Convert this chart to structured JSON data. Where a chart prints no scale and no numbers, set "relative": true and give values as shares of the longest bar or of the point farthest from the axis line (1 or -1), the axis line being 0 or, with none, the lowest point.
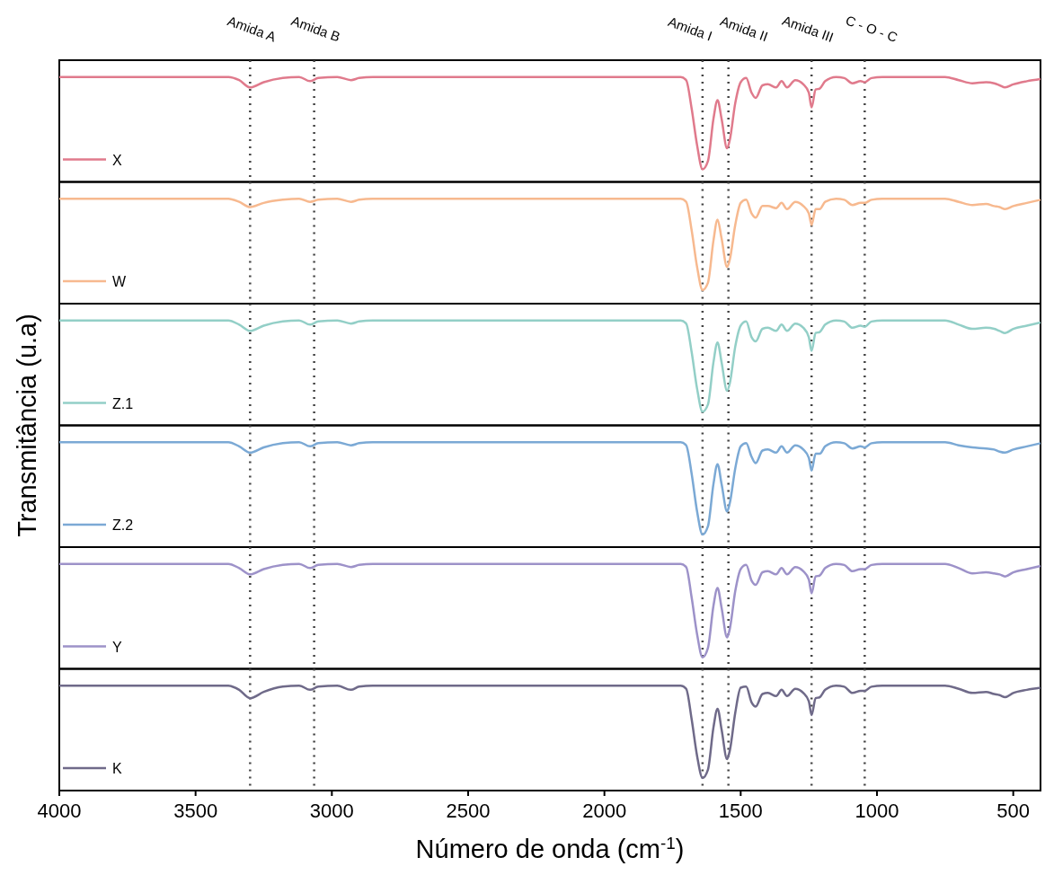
{
  "chart_data": [
    {
      "type": "line",
      "relative": true,
      "ylabel": "Transmitância (u.a)",
      "legend": "bottom left",
      "tick_labels": false,
      "xlim": [
        4000,
        400
      ],
      "xticks": [
        4000,
        3500,
        3000,
        2500,
        2000,
        1500,
        1000,
        500
      ],
      "x": [
        4000,
        3380,
        3340,
        3300,
        3250,
        3180,
        3120,
        3080,
        3050,
        2980,
        2930,
        2900,
        2850,
        1720,
        1700,
        1680,
        1660,
        1640,
        1620,
        1600,
        1585,
        1570,
        1550,
        1540,
        1520,
        1500,
        1480,
        1460,
        1445,
        1420,
        1400,
        1370,
        1350,
        1330,
        1300,
        1270,
        1250,
        1240,
        1225,
        1210,
        1190,
        1150,
        1120,
        1090,
        1060,
        1045,
        1020,
        980,
        750,
        700,
        650,
        600,
        570,
        550,
        530,
        500,
        450,
        400
      ],
      "series": [
        {
          "name": "X",
          "color": "#e07a8c",
          "values": [
            1,
            1,
            0.97,
            0.9,
            0.95,
            0.99,
            1,
            0.96,
            0.99,
            1,
            0.97,
            0.99,
            1,
            1,
            0.97,
            0.7,
            0.35,
            0.12,
            0.2,
            0.6,
            0.78,
            0.6,
            0.32,
            0.4,
            0.75,
            0.95,
            0.99,
            0.85,
            0.8,
            0.92,
            0.93,
            0.9,
            0.96,
            0.9,
            0.97,
            0.93,
            0.85,
            0.71,
            0.88,
            0.89,
            0.96,
            1,
            0.99,
            0.94,
            0.96,
            0.95,
            0.99,
            1,
            1,
            0.97,
            0.94,
            0.95,
            0.94,
            0.92,
            0.9,
            0.93,
            0.96,
            0.98
          ]
        }
      ],
      "ref_lines": [
        {
          "axis": "x",
          "value": 3300,
          "label": "Amida A",
          "line_style": "dotted"
        },
        {
          "axis": "x",
          "value": 3065,
          "label": "Amida B",
          "line_style": "dotted"
        },
        {
          "axis": "x",
          "value": 1640,
          "label": "Amida I",
          "line_style": "dotted"
        },
        {
          "axis": "x",
          "value": 1545,
          "label": "Amida II",
          "line_style": "dotted"
        },
        {
          "axis": "x",
          "value": 1240,
          "label": "Amida III",
          "line_style": "dotted"
        },
        {
          "axis": "x",
          "value": 1045,
          "label": "C - O - C",
          "line_style": "dotted"
        }
      ]
    },
    {
      "type": "line",
      "relative": true,
      "legend": "bottom left",
      "tick_labels": false,
      "xlim": [
        4000,
        400
      ],
      "xticks": [
        4000,
        3500,
        3000,
        2500,
        2000,
        1500,
        1000,
        500
      ],
      "x": [
        4000,
        3380,
        3340,
        3300,
        3250,
        3180,
        3120,
        3080,
        3050,
        2980,
        2930,
        2900,
        2850,
        1720,
        1700,
        1680,
        1660,
        1640,
        1620,
        1600,
        1585,
        1570,
        1550,
        1540,
        1520,
        1500,
        1480,
        1460,
        1445,
        1420,
        1400,
        1370,
        1350,
        1330,
        1300,
        1270,
        1250,
        1240,
        1225,
        1210,
        1190,
        1150,
        1120,
        1090,
        1060,
        1045,
        1020,
        980,
        750,
        700,
        650,
        600,
        570,
        550,
        530,
        500,
        450,
        400
      ],
      "series": [
        {
          "name": "W",
          "color": "#f7b98f",
          "values": [
            1,
            1,
            0.97,
            0.92,
            0.96,
            0.99,
            1,
            0.97,
            0.99,
            1,
            0.97,
            0.99,
            1,
            1,
            0.97,
            0.7,
            0.35,
            0.13,
            0.2,
            0.6,
            0.8,
            0.62,
            0.35,
            0.42,
            0.75,
            0.96,
            0.99,
            0.86,
            0.82,
            0.93,
            0.93,
            0.91,
            0.96,
            0.9,
            0.97,
            0.93,
            0.86,
            0.75,
            0.9,
            0.9,
            0.97,
            1,
            0.99,
            0.94,
            0.96,
            0.96,
            0.99,
            1,
            1,
            0.97,
            0.94,
            0.95,
            0.93,
            0.92,
            0.9,
            0.93,
            0.96,
            0.99
          ]
        }
      ],
      "ref_lines": [
        {
          "axis": "x",
          "value": 3300,
          "line_style": "dotted"
        },
        {
          "axis": "x",
          "value": 3065,
          "line_style": "dotted"
        },
        {
          "axis": "x",
          "value": 1640,
          "line_style": "dotted"
        },
        {
          "axis": "x",
          "value": 1545,
          "line_style": "dotted"
        },
        {
          "axis": "x",
          "value": 1240,
          "line_style": "dotted"
        },
        {
          "axis": "x",
          "value": 1045,
          "line_style": "dotted"
        }
      ]
    },
    {
      "type": "line",
      "relative": true,
      "legend": "bottom left",
      "tick_labels": false,
      "xlim": [
        4000,
        400
      ],
      "xticks": [
        4000,
        3500,
        3000,
        2500,
        2000,
        1500,
        1000,
        500
      ],
      "x": [
        4000,
        3380,
        3340,
        3300,
        3250,
        3180,
        3120,
        3080,
        3050,
        2980,
        2930,
        2900,
        2850,
        1720,
        1700,
        1680,
        1660,
        1640,
        1620,
        1600,
        1585,
        1570,
        1550,
        1540,
        1520,
        1500,
        1480,
        1460,
        1445,
        1420,
        1400,
        1370,
        1350,
        1330,
        1300,
        1270,
        1250,
        1240,
        1225,
        1210,
        1190,
        1150,
        1120,
        1090,
        1060,
        1045,
        1020,
        980,
        750,
        700,
        650,
        600,
        570,
        550,
        530,
        500,
        450,
        400
      ],
      "series": [
        {
          "name": "Z.1",
          "color": "#93cfc7",
          "values": [
            1,
            1,
            0.96,
            0.9,
            0.95,
            0.99,
            1,
            0.96,
            0.99,
            1,
            0.97,
            0.99,
            1,
            1,
            0.97,
            0.7,
            0.35,
            0.13,
            0.2,
            0.6,
            0.79,
            0.6,
            0.33,
            0.4,
            0.75,
            0.95,
            0.99,
            0.84,
            0.8,
            0.92,
            0.93,
            0.9,
            0.96,
            0.9,
            0.97,
            0.93,
            0.84,
            0.71,
            0.88,
            0.89,
            0.96,
            1,
            0.99,
            0.93,
            0.95,
            0.94,
            0.99,
            1,
            1,
            0.96,
            0.92,
            0.93,
            0.92,
            0.9,
            0.88,
            0.92,
            0.95,
            0.98
          ]
        }
      ],
      "ref_lines": [
        {
          "axis": "x",
          "value": 3300,
          "line_style": "dotted"
        },
        {
          "axis": "x",
          "value": 3065,
          "line_style": "dotted"
        },
        {
          "axis": "x",
          "value": 1640,
          "line_style": "dotted"
        },
        {
          "axis": "x",
          "value": 1545,
          "line_style": "dotted"
        },
        {
          "axis": "x",
          "value": 1240,
          "line_style": "dotted"
        },
        {
          "axis": "x",
          "value": 1045,
          "line_style": "dotted"
        }
      ]
    },
    {
      "type": "line",
      "relative": true,
      "legend": "bottom left",
      "tick_labels": false,
      "xlim": [
        4000,
        400
      ],
      "xticks": [
        4000,
        3500,
        3000,
        2500,
        2000,
        1500,
        1000,
        500
      ],
      "x": [
        4000,
        3380,
        3340,
        3300,
        3250,
        3180,
        3120,
        3080,
        3050,
        2980,
        2930,
        2900,
        2850,
        1720,
        1700,
        1680,
        1660,
        1640,
        1620,
        1600,
        1585,
        1570,
        1550,
        1540,
        1520,
        1500,
        1480,
        1460,
        1445,
        1420,
        1400,
        1370,
        1350,
        1330,
        1300,
        1270,
        1250,
        1240,
        1225,
        1210,
        1190,
        1150,
        1120,
        1090,
        1060,
        1045,
        1020,
        980,
        750,
        700,
        650,
        600,
        570,
        550,
        530,
        500,
        450,
        400
      ],
      "series": [
        {
          "name": "Z.2",
          "color": "#7ba9d5",
          "values": [
            1,
            1,
            0.96,
            0.9,
            0.95,
            0.99,
            1,
            0.96,
            0.99,
            1,
            0.97,
            0.99,
            1,
            1,
            0.97,
            0.7,
            0.34,
            0.12,
            0.2,
            0.6,
            0.79,
            0.6,
            0.34,
            0.42,
            0.75,
            0.96,
            0.99,
            0.86,
            0.8,
            0.92,
            0.93,
            0.9,
            0.96,
            0.9,
            0.97,
            0.93,
            0.85,
            0.73,
            0.89,
            0.89,
            0.96,
            1,
            0.99,
            0.94,
            0.96,
            0.95,
            0.99,
            1,
            1,
            0.97,
            0.95,
            0.94,
            0.93,
            0.91,
            0.9,
            0.93,
            0.96,
            0.99
          ]
        }
      ],
      "ref_lines": [
        {
          "axis": "x",
          "value": 3300,
          "line_style": "dotted"
        },
        {
          "axis": "x",
          "value": 3065,
          "line_style": "dotted"
        },
        {
          "axis": "x",
          "value": 1640,
          "line_style": "dotted"
        },
        {
          "axis": "x",
          "value": 1545,
          "line_style": "dotted"
        },
        {
          "axis": "x",
          "value": 1240,
          "line_style": "dotted"
        },
        {
          "axis": "x",
          "value": 1045,
          "line_style": "dotted"
        }
      ]
    },
    {
      "type": "line",
      "relative": true,
      "legend": "bottom left",
      "tick_labels": false,
      "xlim": [
        4000,
        400
      ],
      "xticks": [
        4000,
        3500,
        3000,
        2500,
        2000,
        1500,
        1000,
        500
      ],
      "x": [
        4000,
        3380,
        3340,
        3300,
        3250,
        3180,
        3120,
        3080,
        3050,
        2980,
        2930,
        2900,
        2850,
        1720,
        1700,
        1680,
        1660,
        1640,
        1620,
        1600,
        1585,
        1570,
        1550,
        1540,
        1520,
        1500,
        1480,
        1460,
        1445,
        1420,
        1400,
        1370,
        1350,
        1330,
        1300,
        1270,
        1250,
        1240,
        1225,
        1210,
        1190,
        1150,
        1120,
        1090,
        1060,
        1045,
        1020,
        980,
        750,
        700,
        650,
        600,
        570,
        550,
        530,
        500,
        450,
        400
      ],
      "series": [
        {
          "name": "Y",
          "color": "#9d92c9",
          "values": [
            1,
            1,
            0.96,
            0.9,
            0.95,
            0.99,
            1,
            0.96,
            0.99,
            1,
            0.97,
            0.99,
            1,
            1,
            0.97,
            0.68,
            0.33,
            0.11,
            0.2,
            0.6,
            0.77,
            0.58,
            0.3,
            0.38,
            0.74,
            0.95,
            0.99,
            0.84,
            0.8,
            0.92,
            0.93,
            0.9,
            0.96,
            0.9,
            0.97,
            0.93,
            0.85,
            0.72,
            0.88,
            0.89,
            0.96,
            1,
            0.99,
            0.93,
            0.95,
            0.95,
            0.99,
            1,
            1,
            0.96,
            0.91,
            0.92,
            0.91,
            0.9,
            0.88,
            0.92,
            0.95,
            0.98
          ]
        }
      ],
      "ref_lines": [
        {
          "axis": "x",
          "value": 3300,
          "line_style": "dotted"
        },
        {
          "axis": "x",
          "value": 3065,
          "line_style": "dotted"
        },
        {
          "axis": "x",
          "value": 1640,
          "line_style": "dotted"
        },
        {
          "axis": "x",
          "value": 1545,
          "line_style": "dotted"
        },
        {
          "axis": "x",
          "value": 1240,
          "line_style": "dotted"
        },
        {
          "axis": "x",
          "value": 1045,
          "line_style": "dotted"
        }
      ]
    },
    {
      "type": "line",
      "relative": true,
      "xlabel": "Número de onda (cm$^{-1}$)",
      "legend": "bottom left",
      "tick_labels": "x",
      "xlim": [
        4000,
        400
      ],
      "xticks": [
        4000,
        3500,
        3000,
        2500,
        2000,
        1500,
        1000,
        500
      ],
      "x": [
        4000,
        3380,
        3340,
        3300,
        3250,
        3180,
        3120,
        3080,
        3050,
        2980,
        2930,
        2900,
        2850,
        1720,
        1700,
        1680,
        1660,
        1640,
        1620,
        1600,
        1585,
        1570,
        1550,
        1540,
        1520,
        1500,
        1480,
        1460,
        1445,
        1420,
        1400,
        1370,
        1350,
        1330,
        1300,
        1270,
        1250,
        1240,
        1225,
        1210,
        1190,
        1150,
        1120,
        1090,
        1060,
        1045,
        1020,
        980,
        750,
        700,
        650,
        600,
        570,
        550,
        530,
        500,
        450,
        400
      ],
      "series": [
        {
          "name": "K",
          "color": "#6f6a89",
          "values": [
            1,
            1,
            0.96,
            0.88,
            0.94,
            0.99,
            1,
            0.96,
            0.99,
            1,
            0.96,
            0.99,
            1,
            1,
            0.97,
            0.68,
            0.33,
            0.12,
            0.2,
            0.6,
            0.78,
            0.58,
            0.3,
            0.38,
            0.74,
            0.98,
            0.99,
            0.84,
            0.8,
            0.92,
            0.93,
            0.9,
            0.96,
            0.9,
            0.97,
            0.93,
            0.85,
            0.72,
            0.88,
            0.89,
            0.96,
            1,
            0.99,
            0.93,
            0.95,
            0.95,
            0.99,
            1,
            1,
            0.97,
            0.93,
            0.94,
            0.92,
            0.91,
            0.89,
            0.93,
            0.96,
            0.98
          ]
        }
      ],
      "ref_lines": [
        {
          "axis": "x",
          "value": 3300,
          "line_style": "dotted"
        },
        {
          "axis": "x",
          "value": 3065,
          "line_style": "dotted"
        },
        {
          "axis": "x",
          "value": 1640,
          "line_style": "dotted"
        },
        {
          "axis": "x",
          "value": 1545,
          "line_style": "dotted"
        },
        {
          "axis": "x",
          "value": 1240,
          "line_style": "dotted"
        },
        {
          "axis": "x",
          "value": 1045,
          "line_style": "dotted"
        }
      ]
    }
  ]
}
